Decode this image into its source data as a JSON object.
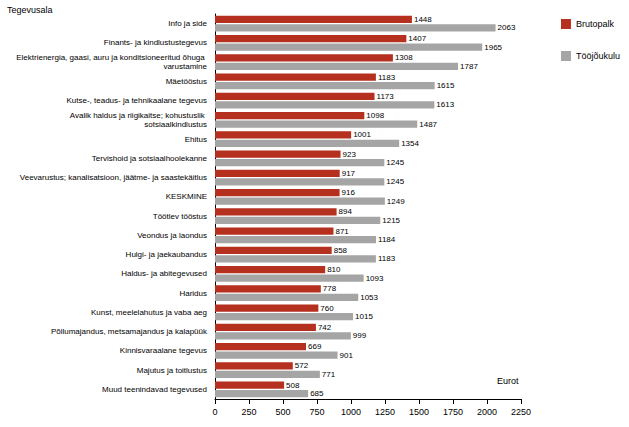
{
  "chart_data": {
    "type": "bar",
    "orientation": "horizontal",
    "y_label": "Tegevusala",
    "x_label": "Eurot",
    "categories": [
      "Info ja side",
      "Finants- ja kindlustustegevus",
      "Elektrienergia, gaasi, auru ja konditsioneeritud õhuga varustamine",
      "Mäetööstus",
      "Kutse-, teadus- ja tehnikaalane tegevus",
      "Avalik haldus ja riigikaitse; kohustuslik sotsiaalkindlustus",
      "Ehitus",
      "Tervishoid ja sotsiaalhoolekanne",
      "Veevarustus; kanalisatsioon, jäätme- ja saastekäitlus",
      "KESKMINE",
      "Töötlev tööstus",
      "Veondus ja laondus",
      "Hulgi- ja jaekaubandus",
      "Haldus- ja abitegevused",
      "Haridus",
      "Kunst, meelelahutus ja vaba aeg",
      "Põllumajandus, metsamajandus ja kalapüük",
      "Kinnisvaraalane tegevus",
      "Majutus ja toitlustus",
      "Muud teenindavad tegevused"
    ],
    "series": [
      {
        "name": "Brutopalk",
        "color": "#b5301f",
        "values": [
          1448,
          1407,
          1308,
          1183,
          1173,
          1098,
          1001,
          923,
          917,
          916,
          894,
          871,
          858,
          810,
          778,
          760,
          742,
          669,
          572,
          508
        ]
      },
      {
        "name": "Tööjõukulu",
        "color": "#a5a5a5",
        "values": [
          2063,
          1965,
          1787,
          1615,
          1613,
          1487,
          1354,
          1245,
          1245,
          1249,
          1215,
          1184,
          1183,
          1093,
          1053,
          1015,
          999,
          901,
          771,
          685
        ]
      }
    ],
    "xlim": [
      0,
      2250
    ],
    "xticks": [
      0,
      250,
      500,
      750,
      1000,
      1250,
      1500,
      1750,
      2000,
      2250
    ],
    "grid": false,
    "legend": "upper right",
    "data_labels": true
  }
}
